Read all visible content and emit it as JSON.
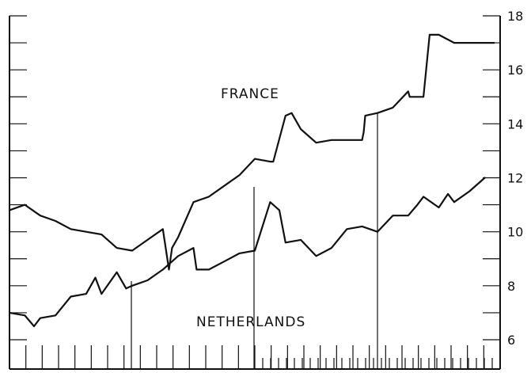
{
  "chart_data": {
    "type": "line",
    "title": "",
    "xlabel": "",
    "ylabel": "",
    "y_axis_side": "right",
    "ylim": [
      6,
      18
    ],
    "y_ticks": [
      {
        "value": 6,
        "label": "6"
      },
      {
        "value": 8,
        "label": "8"
      },
      {
        "value": 10,
        "label": "10"
      },
      {
        "value": 12,
        "label": "12"
      },
      {
        "value": 14,
        "label": "14"
      },
      {
        "value": 16,
        "label": "16"
      },
      {
        "value": 18,
        "label": "18"
      }
    ],
    "x_count": 30,
    "vertical_markers": [
      4,
      8,
      12
    ],
    "series": [
      {
        "name": "FRANCE",
        "x": [
          0,
          0.5,
          1.0,
          1.5,
          2.0,
          2.5,
          3.0,
          3.5,
          4.0,
          4.5,
          5.0,
          5.2,
          5.3,
          5.5,
          6.0,
          6.5,
          7.0,
          7.5,
          8.0,
          8.5,
          8.6,
          9.0,
          9.2,
          9.5,
          10.0,
          10.5,
          11.0,
          11.5,
          11.55,
          11.6,
          12.0,
          12.5,
          13.0,
          13.05,
          13.5,
          13.7,
          14.0,
          14.5,
          14.8,
          15.0,
          15.5,
          15.8
        ],
        "values": [
          10.8,
          11.0,
          10.6,
          10.4,
          10.1,
          10.0,
          9.9,
          9.4,
          9.3,
          9.7,
          10.1,
          8.6,
          9.4,
          9.8,
          11.1,
          11.3,
          11.7,
          12.1,
          12.7,
          12.6,
          12.6,
          14.3,
          14.4,
          13.8,
          13.3,
          13.4,
          13.4,
          13.4,
          13.7,
          14.3,
          14.4,
          14.6,
          15.2,
          15.0,
          15.0,
          17.3,
          17.3,
          17.0,
          17.0,
          17.0,
          17.0,
          17.0
        ]
      },
      {
        "name": "NETHERLANDS",
        "x": [
          0,
          0.5,
          0.8,
          1.0,
          1.5,
          2.0,
          2.5,
          2.8,
          3.0,
          3.5,
          3.8,
          4.0,
          4.5,
          5.0,
          5.5,
          6.0,
          6.1,
          6.2,
          6.5,
          7.0,
          7.5,
          8.0,
          8.5,
          8.8,
          9.0,
          9.5,
          10.0,
          10.5,
          11.0,
          11.5,
          12.0,
          12.5,
          13.0,
          13.3,
          13.5,
          14.0,
          14.3,
          14.5,
          15.0,
          15.5
        ],
        "values": [
          7.0,
          6.9,
          6.5,
          6.8,
          6.9,
          7.6,
          7.7,
          8.3,
          7.7,
          8.5,
          7.9,
          8.0,
          8.2,
          8.6,
          9.1,
          9.4,
          8.6,
          8.6,
          8.6,
          8.9,
          9.2,
          9.3,
          11.1,
          10.8,
          9.6,
          9.7,
          9.1,
          9.4,
          10.1,
          10.2,
          10.0,
          10.6,
          10.6,
          11.0,
          11.3,
          10.9,
          11.4,
          11.1,
          11.5,
          12.0
        ]
      }
    ],
    "series_labels": {
      "france": "FRANCE",
      "netherlands": "NETHERLANDS"
    }
  }
}
